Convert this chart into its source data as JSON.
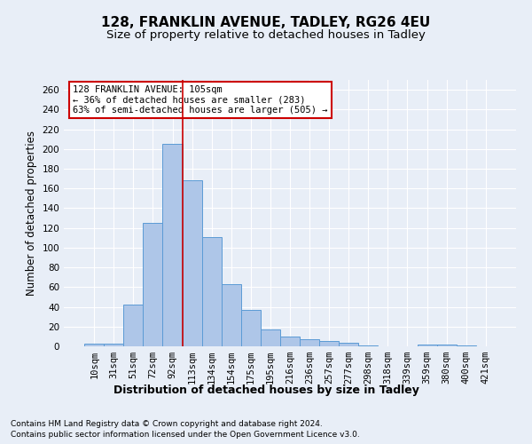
{
  "title1": "128, FRANKLIN AVENUE, TADLEY, RG26 4EU",
  "title2": "Size of property relative to detached houses in Tadley",
  "xlabel": "Distribution of detached houses by size in Tadley",
  "ylabel": "Number of detached properties",
  "footnote1": "Contains HM Land Registry data © Crown copyright and database right 2024.",
  "footnote2": "Contains public sector information licensed under the Open Government Licence v3.0.",
  "bar_labels": [
    "10sqm",
    "31sqm",
    "51sqm",
    "72sqm",
    "92sqm",
    "113sqm",
    "134sqm",
    "154sqm",
    "175sqm",
    "195sqm",
    "216sqm",
    "236sqm",
    "257sqm",
    "277sqm",
    "298sqm",
    "318sqm",
    "339sqm",
    "359sqm",
    "380sqm",
    "400sqm",
    "421sqm"
  ],
  "bar_values": [
    3,
    3,
    42,
    125,
    205,
    168,
    111,
    63,
    37,
    17,
    10,
    7,
    5,
    4,
    1,
    0,
    0,
    2,
    2,
    1,
    0
  ],
  "bar_color": "#aec6e8",
  "bar_edge_color": "#5b9bd5",
  "vline_x": 4.5,
  "vline_color": "#cc0000",
  "annotation_line1": "128 FRANKLIN AVENUE: 105sqm",
  "annotation_line2": "← 36% of detached houses are smaller (283)",
  "annotation_line3": "63% of semi-detached houses are larger (505) →",
  "annotation_box_color": "#ffffff",
  "annotation_box_edge_color": "#cc0000",
  "ylim": [
    0,
    270
  ],
  "yticks": [
    0,
    20,
    40,
    60,
    80,
    100,
    120,
    140,
    160,
    180,
    200,
    220,
    240,
    260
  ],
  "background_color": "#e8eef7",
  "grid_color": "#ffffff",
  "title1_fontsize": 11,
  "title2_fontsize": 9.5,
  "xlabel_fontsize": 9,
  "ylabel_fontsize": 8.5,
  "tick_fontsize": 7.5,
  "annotation_fontsize": 7.5,
  "footnote_fontsize": 6.5
}
